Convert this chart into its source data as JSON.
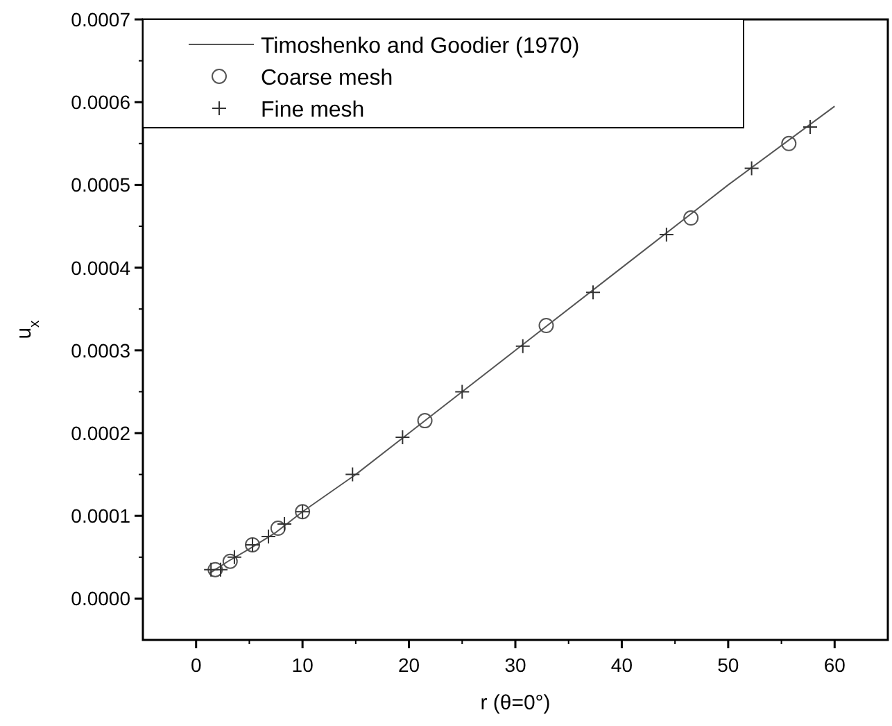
{
  "chart_data": {
    "type": "line",
    "xlabel": "r (θ=0°)",
    "ylabel": "u$_{x}$",
    "xlim": [
      -5,
      65
    ],
    "ylim": [
      -5e-05,
      0.0007
    ],
    "xticks": [
      0,
      10,
      20,
      30,
      40,
      50,
      60
    ],
    "yticks": [
      {
        "value": 0,
        "label": "0.0000"
      },
      {
        "value": 0.0001,
        "label": "0.0001"
      },
      {
        "value": 0.0002,
        "label": "0.0002"
      },
      {
        "value": 0.0003,
        "label": "0.0003"
      },
      {
        "value": 0.0004,
        "label": "0.0004"
      },
      {
        "value": 0.0005,
        "label": "0.0005"
      },
      {
        "value": 0.0006,
        "label": "0.0006"
      },
      {
        "value": 0.0007,
        "label": "0.0007"
      }
    ],
    "grid": false,
    "legend": "top left",
    "series": [
      {
        "name": "Timoshenko and Goodier (1970)",
        "color": "#555555",
        "marker": "none",
        "line_style": "solid",
        "x": [
          1.2,
          3,
          5,
          7.5,
          10,
          15,
          20,
          30,
          40,
          50,
          60
        ],
        "values": [
          3e-05,
          4.5e-05,
          6e-05,
          8e-05,
          0.000105,
          0.00015,
          0.0002,
          0.0003,
          0.0004,
          0.0005,
          0.000595
        ]
      },
      {
        "name": "Coarse mesh",
        "type": "scatter",
        "color": "#555555",
        "marker": "circle",
        "x": [
          1.8,
          3.2,
          5.3,
          7.7,
          10,
          21.5,
          32.9,
          46.5,
          55.7
        ],
        "values": [
          3.5e-05,
          4.5e-05,
          6.5e-05,
          8.5e-05,
          0.000105,
          0.000215,
          0.00033,
          0.00046,
          0.00055
        ]
      },
      {
        "name": "Fine mesh",
        "type": "scatter",
        "color": "#333333",
        "marker": "cross",
        "x": [
          1.4,
          2.3,
          3.6,
          5.3,
          6.8,
          8.3,
          10,
          14.7,
          19.4,
          25,
          30.7,
          37.3,
          44.2,
          52.2,
          57.7
        ],
        "values": [
          3.5e-05,
          3.5e-05,
          5e-05,
          6.5e-05,
          7.5e-05,
          9e-05,
          0.000105,
          0.00015,
          0.000195,
          0.00025,
          0.000305,
          0.00037,
          0.00044,
          0.00052,
          0.00057
        ]
      }
    ]
  }
}
